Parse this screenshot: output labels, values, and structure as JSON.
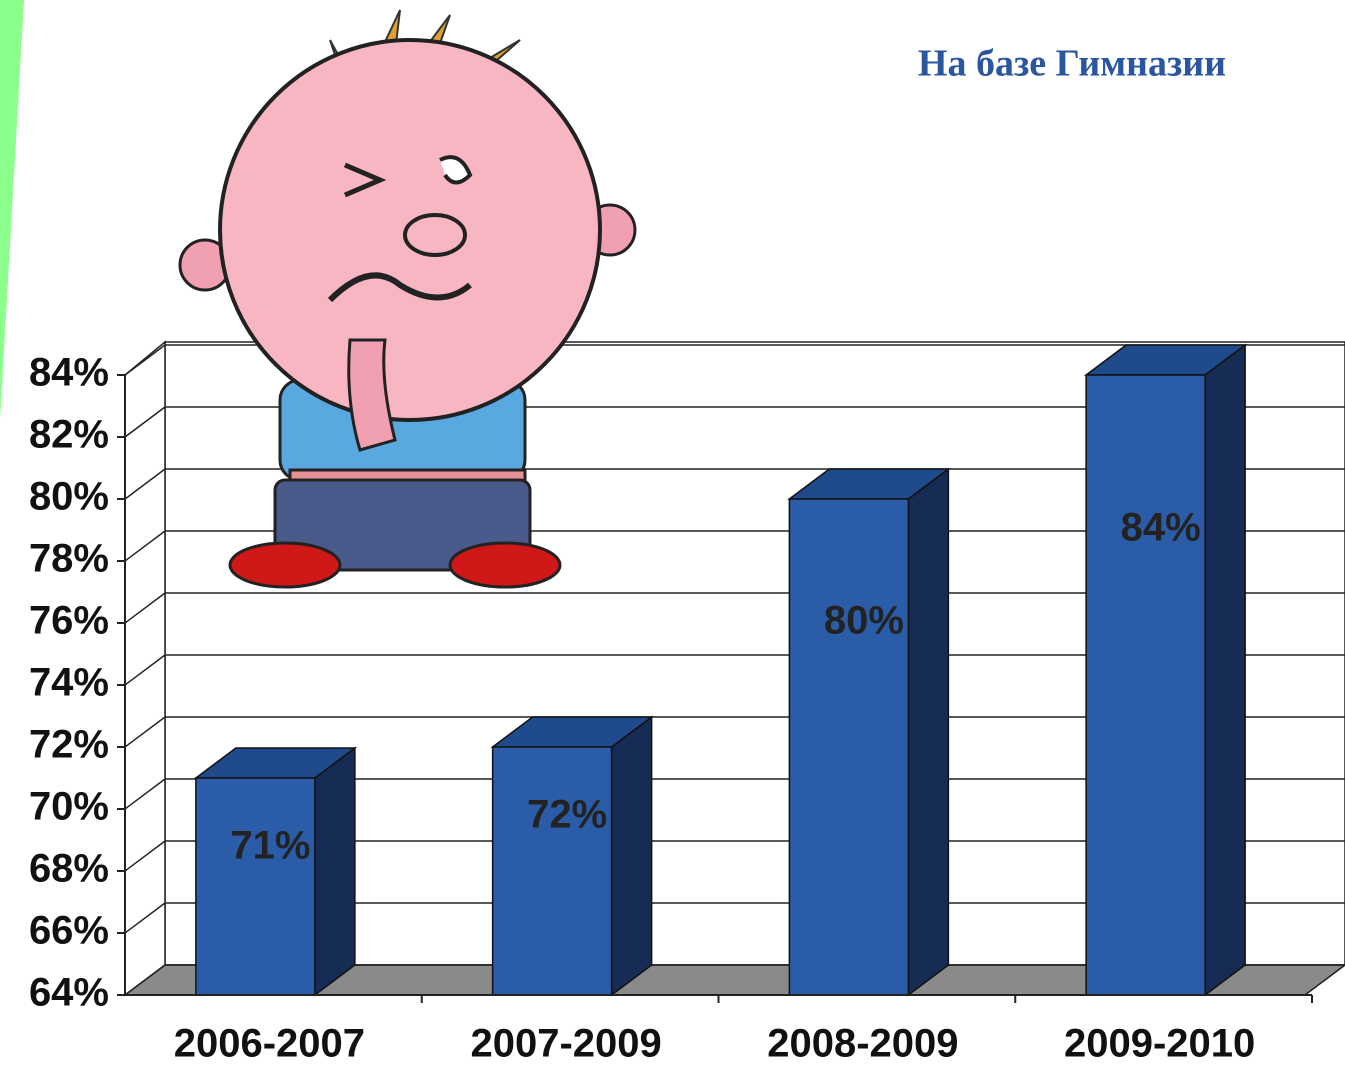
{
  "chart_data": {
    "type": "bar3d",
    "title": "На базе Гимназии",
    "categories": [
      "2006-2007",
      "2007-2009",
      "2008-2009",
      "2009-2010"
    ],
    "values": [
      71,
      72,
      80,
      84
    ],
    "value_labels": [
      "71%",
      "72%",
      "80%",
      "84%"
    ],
    "color": "#2a5ca8",
    "ylim": [
      64,
      84
    ],
    "yticks": [
      {
        "value": 64,
        "label": "64%"
      },
      {
        "value": 66,
        "label": "66%"
      },
      {
        "value": 68,
        "label": "68%"
      },
      {
        "value": 70,
        "label": "70%"
      },
      {
        "value": 72,
        "label": "72%"
      },
      {
        "value": 74,
        "label": "74%"
      },
      {
        "value": 76,
        "label": "76%"
      },
      {
        "value": 78,
        "label": "78%"
      },
      {
        "value": 80,
        "label": "80%"
      },
      {
        "value": 82,
        "label": "82%"
      },
      {
        "value": 84,
        "label": "84%"
      }
    ],
    "grid": true
  }
}
